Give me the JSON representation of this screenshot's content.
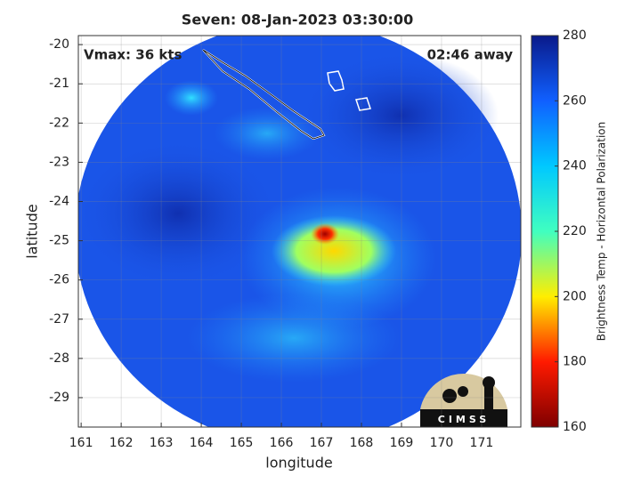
{
  "chart_data": {
    "type": "map",
    "title": "Seven: 08-Jan-2023 03:30:00",
    "xlabel": "longitude",
    "ylabel": "latitude",
    "annotations": [
      "Vmax: 36 kts",
      "02:46 away"
    ],
    "logo": "CIMSS",
    "xlim": [
      160.93,
      171.98
    ],
    "xticks": [
      161,
      162,
      163,
      164,
      165,
      166,
      167,
      168,
      169,
      170,
      171
    ],
    "ylim": [
      -29.75,
      -19.77
    ],
    "yticks": [
      -20,
      -21,
      -22,
      -23,
      -24,
      -25,
      -26,
      -27,
      -28,
      -29
    ],
    "grid": true,
    "colorbar": {
      "label": "Brightness Temp - Horizontal Polarization",
      "lim": [
        160,
        280
      ],
      "ticks": [
        160,
        180,
        200,
        220,
        240,
        260,
        280
      ],
      "colormap": [
        "#7f0000",
        "#ff1a00",
        "#ffee00",
        "#40ffc0",
        "#00c8ff",
        "#1060ff",
        "#0a1a8a"
      ]
    }
  }
}
